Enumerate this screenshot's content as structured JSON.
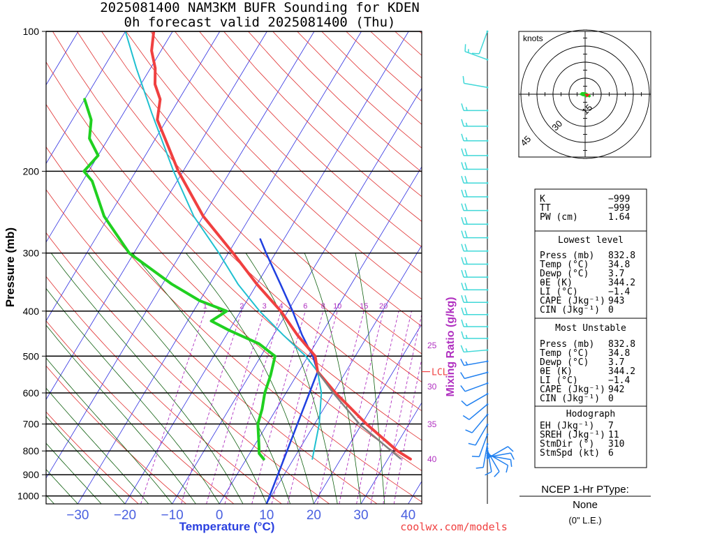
{
  "title_line1": "2025081400 NAM3KM BUFR Sounding for KDEN",
  "title_line2": "0h forecast valid 2025081400 (Thu)",
  "watermark": "coolwx.com/models",
  "colors": {
    "temp": "#f04040",
    "dewp": "#20d020",
    "parcel": "#2040e0",
    "wetbulb": "#20c0d0",
    "isotherm": "#3030e0",
    "dry_adiabat": "#e03030",
    "moist_adiabat": "#106010",
    "mixing_ratio": "#b030c0",
    "wind": "#2080f0",
    "wind_upper": "#40d8d8"
  },
  "chart_data": {
    "type": "skew-t",
    "xlabel": "Temperature (°C)",
    "ylabel": "Pressure (mb)",
    "pressure_ticks": [
      100,
      200,
      300,
      400,
      500,
      600,
      700,
      800,
      900,
      1000
    ],
    "temperature_ticks": [
      -30,
      -20,
      -10,
      0,
      10,
      20,
      30,
      40
    ],
    "mixing_ratio_label": "Mixing Ratio (g/kg)",
    "mixing_ratio_lines": [
      "1",
      "2",
      "3",
      "4",
      "6",
      "8",
      "10",
      "15",
      "20",
      "25",
      "30",
      "35",
      "40"
    ],
    "lcl_label": "LCL",
    "lcl_pressure": 540,
    "series": [
      {
        "name": "temp",
        "points": [
          [
            833,
            34.8
          ],
          [
            800,
            31.0
          ],
          [
            700,
            21.0
          ],
          [
            600,
            10.5
          ],
          [
            540,
            4.0
          ],
          [
            500,
            1.5
          ],
          [
            450,
            -5.0
          ],
          [
            400,
            -11.5
          ],
          [
            350,
            -20.0
          ],
          [
            300,
            -29.0
          ],
          [
            250,
            -40.0
          ],
          [
            200,
            -51.0
          ],
          [
            170,
            -58.0
          ],
          [
            155,
            -62.0
          ],
          [
            140,
            -64.0
          ],
          [
            130,
            -67.0
          ],
          [
            120,
            -69.0
          ],
          [
            110,
            -72.0
          ],
          [
            100,
            -74.0
          ]
        ]
      },
      {
        "name": "dewp",
        "points": [
          [
            833,
            3.7
          ],
          [
            810,
            2.0
          ],
          [
            780,
            1.0
          ],
          [
            700,
            -2.0
          ],
          [
            650,
            -3.0
          ],
          [
            600,
            -4.5
          ],
          [
            550,
            -5.5
          ],
          [
            500,
            -7.0
          ],
          [
            470,
            -12.0
          ],
          [
            440,
            -20.0
          ],
          [
            420,
            -25.0
          ],
          [
            400,
            -23.0
          ],
          [
            380,
            -30.0
          ],
          [
            350,
            -38.0
          ],
          [
            300,
            -51.0
          ],
          [
            250,
            -61.0
          ],
          [
            210,
            -68.0
          ],
          [
            200,
            -71.0
          ],
          [
            185,
            -70.0
          ],
          [
            170,
            -74.0
          ],
          [
            155,
            -76.0
          ],
          [
            140,
            -80.0
          ]
        ]
      },
      {
        "name": "wetbulb",
        "points": [
          [
            833,
            14.0
          ],
          [
            700,
            11.0
          ],
          [
            600,
            7.5
          ],
          [
            540,
            4.0
          ],
          [
            500,
            -0.5
          ],
          [
            450,
            -8.0
          ],
          [
            400,
            -16.0
          ],
          [
            350,
            -24.0
          ],
          [
            300,
            -32.0
          ],
          [
            250,
            -42.0
          ],
          [
            200,
            -52.0
          ],
          [
            150,
            -64.0
          ],
          [
            120,
            -73.0
          ],
          [
            100,
            -80.0
          ]
        ]
      },
      {
        "name": "parcel",
        "points": [
          [
            1040,
            10.0
          ],
          [
            540,
            4.0
          ],
          [
            500,
            1.0
          ],
          [
            450,
            -4.0
          ],
          [
            400,
            -9.0
          ],
          [
            350,
            -15.0
          ],
          [
            300,
            -22.0
          ],
          [
            280,
            -25.0
          ]
        ]
      }
    ],
    "winds": [
      {
        "p": 100,
        "spd": 10,
        "dir": 200
      },
      {
        "p": 115,
        "spd": 15,
        "dir": 290
      },
      {
        "p": 132,
        "spd": 10,
        "dir": 280
      },
      {
        "p": 148,
        "spd": 15,
        "dir": 270
      },
      {
        "p": 160,
        "spd": 15,
        "dir": 270
      },
      {
        "p": 172,
        "spd": 15,
        "dir": 270
      },
      {
        "p": 185,
        "spd": 20,
        "dir": 270
      },
      {
        "p": 198,
        "spd": 20,
        "dir": 270
      },
      {
        "p": 212,
        "spd": 20,
        "dir": 270
      },
      {
        "p": 227,
        "spd": 20,
        "dir": 270
      },
      {
        "p": 243,
        "spd": 20,
        "dir": 270
      },
      {
        "p": 260,
        "spd": 20,
        "dir": 270
      },
      {
        "p": 278,
        "spd": 20,
        "dir": 270
      },
      {
        "p": 297,
        "spd": 20,
        "dir": 270
      },
      {
        "p": 317,
        "spd": 20,
        "dir": 270
      },
      {
        "p": 338,
        "spd": 20,
        "dir": 270
      },
      {
        "p": 360,
        "spd": 20,
        "dir": 270
      },
      {
        "p": 383,
        "spd": 20,
        "dir": 270
      },
      {
        "p": 407,
        "spd": 20,
        "dir": 270
      },
      {
        "p": 432,
        "spd": 15,
        "dir": 270
      },
      {
        "p": 458,
        "spd": 15,
        "dir": 270
      },
      {
        "p": 485,
        "spd": 15,
        "dir": 265
      },
      {
        "p": 513,
        "spd": 15,
        "dir": 260
      },
      {
        "p": 542,
        "spd": 10,
        "dir": 255
      },
      {
        "p": 572,
        "spd": 10,
        "dir": 250
      },
      {
        "p": 603,
        "spd": 10,
        "dir": 240
      },
      {
        "p": 635,
        "spd": 10,
        "dir": 230
      },
      {
        "p": 668,
        "spd": 10,
        "dir": 220
      },
      {
        "p": 702,
        "spd": 10,
        "dir": 210
      },
      {
        "p": 737,
        "spd": 10,
        "dir": 200
      },
      {
        "p": 773,
        "spd": 10,
        "dir": 190
      },
      {
        "p": 790,
        "spd": 10,
        "dir": 170
      },
      {
        "p": 800,
        "spd": 10,
        "dir": 150
      },
      {
        "p": 810,
        "spd": 10,
        "dir": 120
      },
      {
        "p": 818,
        "spd": 10,
        "dir": 100
      },
      {
        "p": 825,
        "spd": 10,
        "dir": 80
      },
      {
        "p": 830,
        "spd": 10,
        "dir": 60
      }
    ],
    "hodograph": {
      "units_label": "knots",
      "ring_labels": [
        "15",
        "30",
        "45"
      ],
      "ring_step_kt": 15,
      "trace_uv": [
        [
          0,
          0
        ],
        [
          -2,
          -1
        ],
        [
          -4,
          0
        ],
        [
          -3,
          1
        ],
        [
          0,
          1
        ],
        [
          2,
          0
        ],
        [
          3,
          -1
        ],
        [
          1,
          -2
        ],
        [
          -1,
          -1
        ]
      ],
      "trace_tail_uv": [
        [
          2,
          -1
        ],
        [
          4,
          -2
        ],
        [
          5,
          -1
        ]
      ],
      "storm_motion_uv": [
        2,
        -3
      ]
    }
  },
  "panel": {
    "indices": [
      {
        "label": "K",
        "value": "−999"
      },
      {
        "label": "TT",
        "value": "−999"
      },
      {
        "label": "PW (cm)",
        "value": "1.64"
      }
    ],
    "lowest_title": "Lowest level",
    "lowest": [
      {
        "label": "Press (mb)",
        "value": "832.8"
      },
      {
        "label": "Temp (°C)",
        "value": "34.8"
      },
      {
        "label": "Dewp (°C)",
        "value": "3.7"
      },
      {
        "label": "θE (K)",
        "value": "344.2"
      },
      {
        "label": "LI (°C)",
        "value": "−1.4"
      },
      {
        "label": "CAPE (Jkg⁻¹)",
        "value": "943"
      },
      {
        "label": "CIN (Jkg⁻¹)",
        "value": "0"
      }
    ],
    "unstable_title": "Most Unstable",
    "unstable": [
      {
        "label": "Press (mb)",
        "value": "832.8"
      },
      {
        "label": "Temp (°C)",
        "value": "34.8"
      },
      {
        "label": "Dewp (°C)",
        "value": "3.7"
      },
      {
        "label": "θE (K)",
        "value": "344.2"
      },
      {
        "label": "LI (°C)",
        "value": "−1.4"
      },
      {
        "label": "CAPE (Jkg⁻¹)",
        "value": "942"
      },
      {
        "label": "CIN (Jkg⁻¹)",
        "value": "0"
      }
    ],
    "hodo_title": "Hodograph",
    "hodo": [
      {
        "label": "EH (Jkg⁻¹)",
        "value": "7"
      },
      {
        "label": "SREH (Jkg⁻¹)",
        "value": "11"
      },
      {
        "label": "StmDir (°)",
        "value": "310"
      },
      {
        "label": "StmSpd (kt)",
        "value": "6"
      }
    ],
    "ptype_title": "NCEP 1-Hr PType:",
    "ptype_value": "None",
    "ptype_amount": "(0\" L.E.)"
  }
}
